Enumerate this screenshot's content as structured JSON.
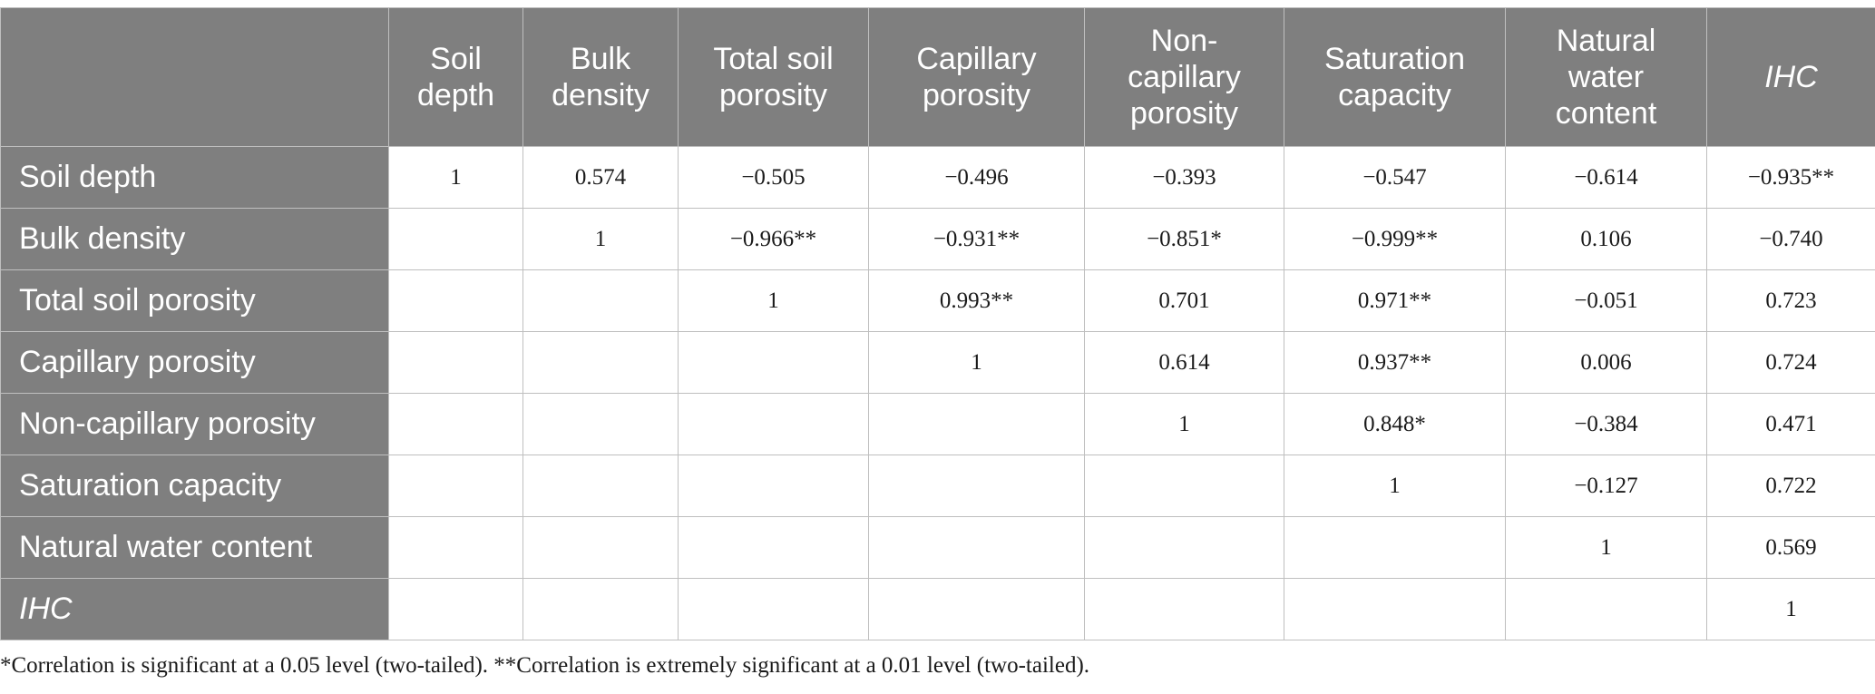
{
  "table": {
    "columns": [
      "",
      "Soil\ndepth",
      "Bulk\ndensity",
      "Total soil\nporosity",
      "Capillary\nporosity",
      "Non-\ncapillary\nporosity",
      "Saturation\ncapacity",
      "Natural\nwater\ncontent",
      "IHC"
    ],
    "rows": [
      {
        "label": "Soil depth",
        "cells": [
          "1",
          "0.574",
          "−0.505",
          "−0.496",
          "−0.393",
          "−0.547",
          "−0.614",
          "−0.935**"
        ]
      },
      {
        "label": "Bulk density",
        "cells": [
          "",
          "1",
          "−0.966**",
          "−0.931**",
          "−0.851*",
          "−0.999**",
          "0.106",
          "−0.740"
        ]
      },
      {
        "label": "Total soil porosity",
        "cells": [
          "",
          "",
          "1",
          "0.993**",
          "0.701",
          "0.971**",
          "−0.051",
          "0.723"
        ]
      },
      {
        "label": "Capillary porosity",
        "cells": [
          "",
          "",
          "",
          "1",
          "0.614",
          "0.937**",
          "0.006",
          "0.724"
        ]
      },
      {
        "label": "Non-capillary porosity",
        "cells": [
          "",
          "",
          "",
          "",
          "1",
          "0.848*",
          "−0.384",
          "0.471"
        ]
      },
      {
        "label": "Saturation capacity",
        "cells": [
          "",
          "",
          "",
          "",
          "",
          "1",
          "−0.127",
          "0.722"
        ]
      },
      {
        "label": "Natural water content",
        "cells": [
          "",
          "",
          "",
          "",
          "",
          "",
          "1",
          "0.569"
        ]
      },
      {
        "label": "IHC",
        "cells": [
          "",
          "",
          "",
          "",
          "",
          "",
          "",
          "1"
        ]
      }
    ]
  },
  "footnote": "*Correlation is significant at a 0.05 level (two-tailed). **Correlation is extremely significant at a 0.01 level (two-tailed).",
  "colors": {
    "header_bg": "#7f7f7f",
    "header_text": "#ffffff",
    "grid": "#bfbfbf",
    "body_text": "#1a1a1a"
  }
}
